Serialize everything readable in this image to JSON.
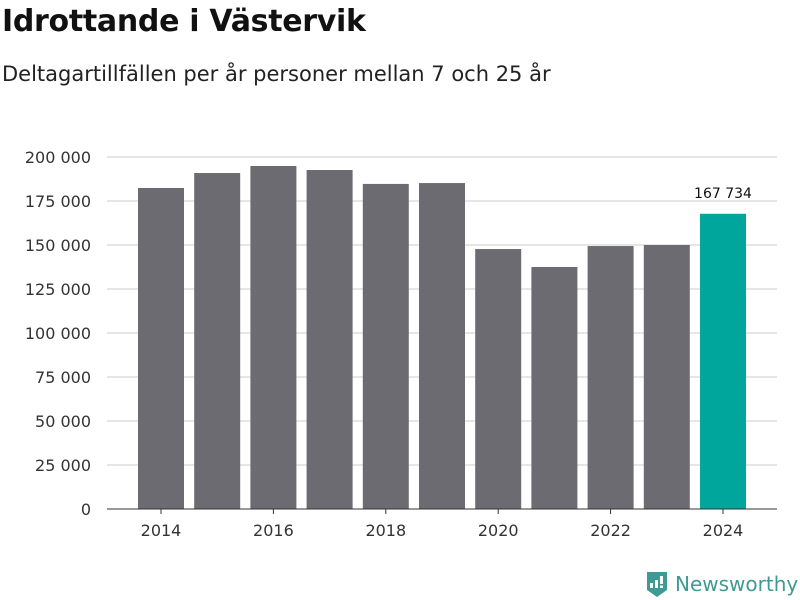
{
  "title": "Idrottande i Västervik",
  "subtitle": "Deltagartillfällen per år personer mellan 7 och 25 år",
  "brand": "Newsworthy",
  "colors": {
    "bar": "#6c6b71",
    "highlight": "#00a69b",
    "grid": "#dddddd"
  },
  "chart_data": {
    "type": "bar",
    "categories": [
      "2014",
      "2015",
      "2016",
      "2017",
      "2018",
      "2019",
      "2020",
      "2021",
      "2022",
      "2023",
      "2024"
    ],
    "values": [
      182400,
      190900,
      194900,
      192600,
      184700,
      185200,
      147700,
      137500,
      149400,
      150000,
      167734
    ],
    "highlight_index": 10,
    "data_labels": [
      {
        "index": 10,
        "text": "167 734"
      }
    ],
    "ylim": [
      0,
      200000
    ],
    "yticks": [
      0,
      25000,
      50000,
      75000,
      100000,
      125000,
      150000,
      175000,
      200000
    ],
    "ytick_labels": [
      "0",
      "25 000",
      "50 000",
      "75 000",
      "100 000",
      "125 000",
      "150 000",
      "175 000",
      "200 000"
    ],
    "xtick_labels": [
      "2014",
      "2016",
      "2018",
      "2020",
      "2022",
      "2024"
    ],
    "xlabel": "",
    "ylabel": "",
    "grid": true
  }
}
